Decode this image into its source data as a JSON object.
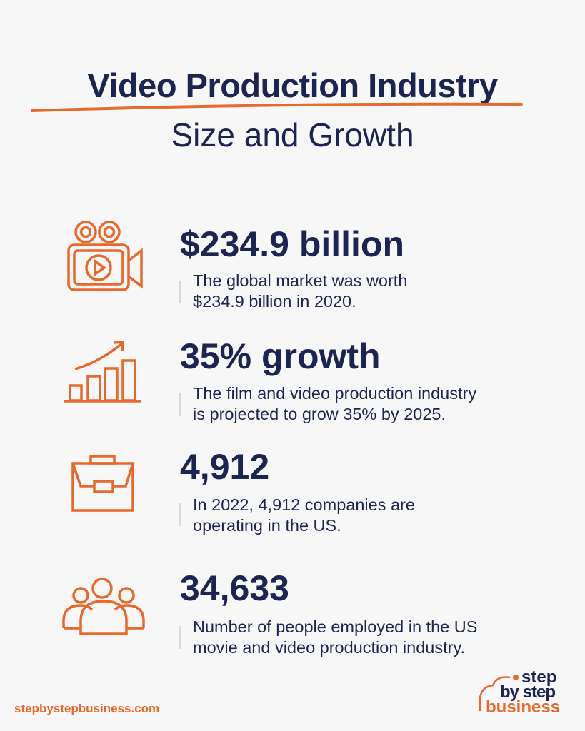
{
  "header": {
    "title": "Video Production Industry",
    "subtitle": "Size and Growth"
  },
  "colors": {
    "navy": "#1c2551",
    "orange": "#e8692c",
    "background": "#f7f7f7"
  },
  "stats": [
    {
      "icon": "video-camera-icon",
      "heading": "$234.9 billion",
      "lines": [
        "The global market was worth",
        "$234.9 billion in 2020."
      ]
    },
    {
      "icon": "growth-chart-icon",
      "heading": "35% growth",
      "lines": [
        "The film and video production industry",
        "is projected to grow 35% by 2025."
      ]
    },
    {
      "icon": "briefcase-icon",
      "heading": "4,912",
      "lines": [
        "In 2022, 4,912 companies are",
        "operating in the US."
      ]
    },
    {
      "icon": "people-group-icon",
      "heading": "34,633",
      "lines": [
        "Number of people employed in the US",
        "movie and video production industry."
      ]
    }
  ],
  "footer": {
    "url": "stepbystepbusiness.com",
    "logo": {
      "line1": "step",
      "line2": "by step",
      "line3": "business"
    }
  }
}
